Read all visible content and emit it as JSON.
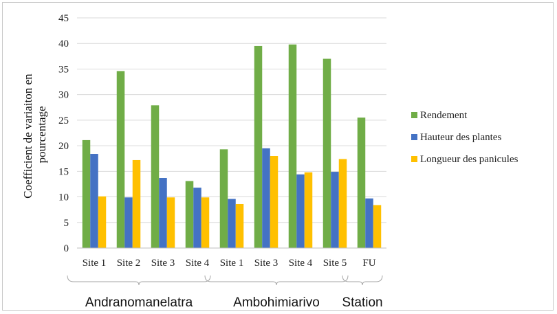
{
  "chart_data": {
    "type": "bar",
    "ylabel_lines": [
      "Coefficient de variaiton en",
      "pourcentage"
    ],
    "ylim": [
      0,
      45
    ],
    "yticks": [
      0,
      5,
      10,
      15,
      20,
      25,
      30,
      35,
      40,
      45
    ],
    "grid": true,
    "legend_position": "right",
    "categories": [
      "Site 1",
      "Site 2",
      "Site 3",
      "Site 4",
      "Site 1",
      "Site 3",
      "Site 4",
      "Site 5",
      "FU"
    ],
    "groups": [
      {
        "label": "Andranomanelatra",
        "from": 0,
        "to": 3
      },
      {
        "label": "Ambohimiarivo",
        "from": 4,
        "to": 7
      },
      {
        "label": "Station",
        "from": 8,
        "to": 8
      }
    ],
    "series": [
      {
        "name": "Rendement",
        "color": "#70AD47",
        "values": [
          21.1,
          34.6,
          27.9,
          13.1,
          19.3,
          39.5,
          39.8,
          37.0,
          25.5
        ]
      },
      {
        "name": "Hauteur des plantes",
        "color": "#4472C4",
        "values": [
          18.4,
          9.9,
          13.7,
          11.8,
          9.6,
          19.5,
          14.4,
          14.9,
          9.7
        ]
      },
      {
        "name": "Longueur des panicules",
        "color": "#FFC000",
        "values": [
          10.1,
          17.2,
          9.9,
          9.9,
          8.6,
          18.0,
          14.8,
          17.4,
          8.4
        ]
      }
    ]
  }
}
